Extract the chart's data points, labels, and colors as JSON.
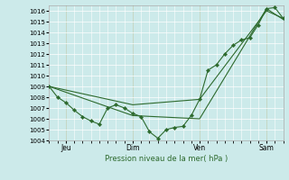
{
  "xlabel": "Pression niveau de la mer( hPa )",
  "bg_color": "#cceaea",
  "grid_color": "#ffffff",
  "line_color": "#2d6a2d",
  "ylim": [
    1004,
    1016.5
  ],
  "yticks": [
    1004,
    1005,
    1006,
    1007,
    1008,
    1009,
    1010,
    1011,
    1012,
    1013,
    1014,
    1015,
    1016
  ],
  "xlim": [
    0,
    168
  ],
  "day_positions": [
    12,
    60,
    108,
    156
  ],
  "day_labels": [
    "Jeu",
    "Dim",
    "Ven",
    "Sam"
  ],
  "vline_positions": [
    12,
    60,
    108,
    156
  ],
  "series1_x": [
    0,
    6,
    12,
    18,
    24,
    30,
    36,
    42,
    48,
    54,
    60,
    66,
    72,
    78,
    84,
    90,
    96,
    102,
    108,
    114,
    120,
    126,
    132,
    138,
    144,
    150,
    156,
    162,
    168
  ],
  "series1_y": [
    1009.0,
    1008.0,
    1007.5,
    1006.8,
    1006.2,
    1005.8,
    1005.5,
    1007.0,
    1007.3,
    1007.0,
    1006.5,
    1006.2,
    1004.8,
    1004.2,
    1005.0,
    1005.2,
    1005.3,
    1006.3,
    1007.8,
    1010.5,
    1011.0,
    1012.0,
    1012.8,
    1013.3,
    1013.5,
    1014.7,
    1016.2,
    1016.3,
    1015.3
  ],
  "series2_x": [
    0,
    60,
    108,
    156,
    168
  ],
  "series2_y": [
    1009.0,
    1007.3,
    1007.8,
    1016.0,
    1015.3
  ],
  "series3_x": [
    0,
    60,
    108,
    156,
    168
  ],
  "series3_y": [
    1009.0,
    1006.3,
    1006.0,
    1016.2,
    1015.2
  ]
}
